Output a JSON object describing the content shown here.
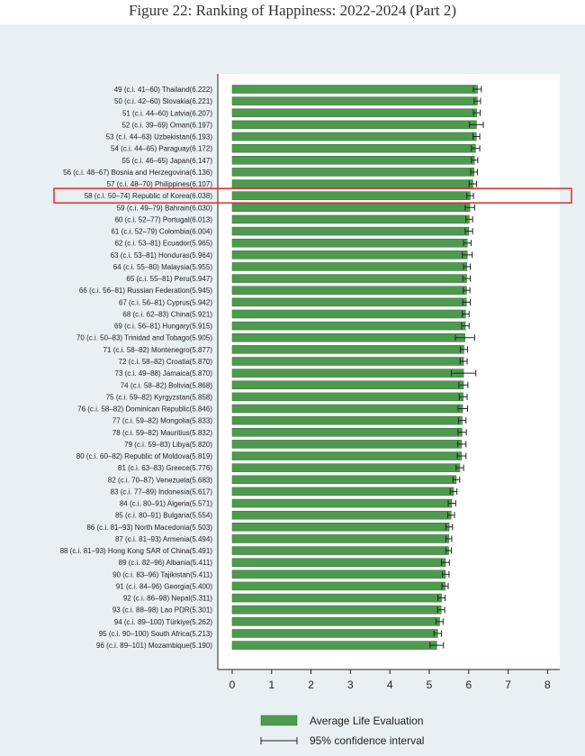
{
  "figure": {
    "caption": "Figure 22: Ranking of Happiness: 2022-2024 (Part 2)"
  },
  "colors": {
    "bar": "#4e9a4e",
    "bar_border": "#2f6b2f",
    "highlight": "#e8272d",
    "panel": "#e8f0f4",
    "plot": "#ffffff",
    "ci": "#222222"
  },
  "chart_data": {
    "type": "bar",
    "orientation": "horizontal",
    "categories": [
      "49 (c.i. 41–60) Thailand(6.222)",
      "50 (c.i. 42–60) Slovakia(6.221)",
      "51 (c.i. 44–60) Latvia(6.207)",
      "52 (c.i. 39–69) Oman(6.197)",
      "53 (c.i. 44–63) Uzbekistan(6.193)",
      "54 (c.i. 44–65) Paraguay(6.172)",
      "55 (c.i. 46–65) Japan(6.147)",
      "56 (c.i. 48–67) Bosnia and Herzegovina(6.136)",
      "57 (c.i. 48–70) Philippines(6.107)",
      "58 (c.i. 50–74) Republic of Korea(6.038)",
      "59 (c.i. 49–79) Bahrain(6.030)",
      "60 (c.i. 52–77) Portugal(6.013)",
      "61 (c.i. 52–79) Colombia(6.004)",
      "62 (c.i. 53–81) Ecuador(5.965)",
      "63 (c.i. 53–81) Honduras(5.964)",
      "64 (c.i. 55–80) Malaysia(5.955)",
      "65 (c.i. 55–81) Peru(5.947)",
      "66 (c.i. 56–81) Russian Federation(5.945)",
      "67 (c.i. 56–81) Cyprus(5.942)",
      "68 (c.i. 62–83) China(5.921)",
      "69 (c.i. 56–81) Hungary(5.915)",
      "70 (c.i. 50–83) Trinidad and Tobago(5.905)",
      "71 (c.i. 58–82) Montenegro(5.877)",
      "72 (c.i. 58–82) Croatia(5.870)",
      "73 (c.i. 49–88) Jamaica(5.870)",
      "74 (c.i. 58–82) Bolivia(5.868)",
      "75 (c.i. 59–82) Kyrgyzstan(5.858)",
      "76 (c.i. 58–82) Dominican Republic(5.846)",
      "77 (c.i. 59–82) Mongolia(5.833)",
      "78 (c.i. 59–82) Mauritius(5.832)",
      "79 (c.i. 59–83) Libya(5.820)",
      "80 (c.i. 60–82) Republic of Moldova(5.819)",
      "81 (c.i. 63–83) Greece(5.776)",
      "82 (c.i. 70–87) Venezuela(5.683)",
      "83 (c.i. 77–89) Indonesia(5.617)",
      "84 (c.i. 80–91) Algeria(5.571)",
      "85 (c.i. 80–91) Bulgaria(5.554)",
      "86 (c.i. 81–93) North Macedonia(5.503)",
      "87 (c.i. 81–93) Armenia(5.494)",
      "88 (c.i. 81–93) Hong Kong SAR of China(5.491)",
      "89 (c.i. 82–96) Albania(5.411)",
      "90 (c.i. 83–96) Tajikistan(5.411)",
      "91 (c.i. 84–96) Georgia(5.400)",
      "92 (c.i. 86–98) Nepal(5.311)",
      "93 (c.i. 88–98) Lao PDR(5.301)",
      "94 (c.i. 89–100) Türkiye(5.262)",
      "95 (c.i. 90–100) South Africa(5.213)",
      "96 (c.i. 89–101) Mozambique(5.190)"
    ],
    "values": [
      6.222,
      6.221,
      6.207,
      6.197,
      6.193,
      6.172,
      6.147,
      6.136,
      6.107,
      6.038,
      6.03,
      6.013,
      6.004,
      5.965,
      5.964,
      5.955,
      5.947,
      5.945,
      5.942,
      5.921,
      5.915,
      5.905,
      5.877,
      5.87,
      5.87,
      5.868,
      5.858,
      5.846,
      5.833,
      5.832,
      5.82,
      5.819,
      5.776,
      5.683,
      5.617,
      5.571,
      5.554,
      5.503,
      5.494,
      5.491,
      5.411,
      5.411,
      5.4,
      5.311,
      5.301,
      5.262,
      5.213,
      5.19
    ],
    "ci_low": [
      6.12,
      6.14,
      6.12,
      6.02,
      6.11,
      6.07,
      6.07,
      6.05,
      6.01,
      5.95,
      5.91,
      5.93,
      5.91,
      5.87,
      5.84,
      5.87,
      5.85,
      5.86,
      5.85,
      5.84,
      5.82,
      5.66,
      5.79,
      5.78,
      5.56,
      5.75,
      5.76,
      5.73,
      5.74,
      5.73,
      5.72,
      5.71,
      5.68,
      5.6,
      5.53,
      5.48,
      5.47,
      5.42,
      5.42,
      5.42,
      5.31,
      5.33,
      5.32,
      5.22,
      5.21,
      5.17,
      5.12,
      5.02
    ],
    "ci_high": [
      6.32,
      6.3,
      6.29,
      6.37,
      6.28,
      6.28,
      6.23,
      6.22,
      6.2,
      6.12,
      6.15,
      6.1,
      6.1,
      6.06,
      6.09,
      6.04,
      6.04,
      6.03,
      6.04,
      6.01,
      6.01,
      6.15,
      5.97,
      5.96,
      6.18,
      5.98,
      5.96,
      5.97,
      5.93,
      5.94,
      5.93,
      5.93,
      5.87,
      5.77,
      5.7,
      5.67,
      5.64,
      5.59,
      5.57,
      5.56,
      5.51,
      5.5,
      5.48,
      5.4,
      5.39,
      5.35,
      5.31,
      5.36
    ],
    "highlight_index": 9,
    "xlim": [
      0,
      8
    ],
    "xticks": [
      0,
      1,
      2,
      3,
      4,
      5,
      6,
      7,
      8
    ],
    "grid": false,
    "legend": {
      "position": "bottom",
      "entries": [
        "Average Life Evaluation",
        "95% confidence interval"
      ]
    }
  }
}
